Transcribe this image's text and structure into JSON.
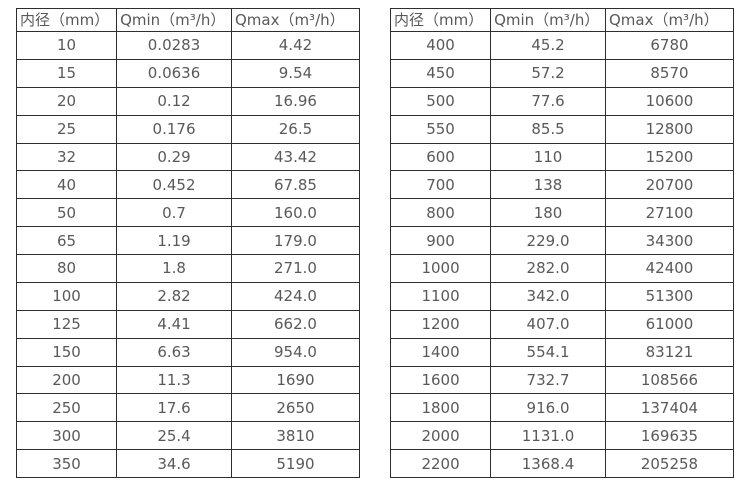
{
  "style": {
    "border_color": "#2e2e2e",
    "text_color": "#595959",
    "background_color": "#ffffff"
  },
  "tables": [
    {
      "name": "flow-rates-small-diameter",
      "columns": [
        "内径（mm）",
        "Qmin（m³/h）",
        "Qmax（m³/h）"
      ],
      "rows": [
        [
          "10",
          "0.0283",
          "4.42"
        ],
        [
          "15",
          "0.0636",
          "9.54"
        ],
        [
          "20",
          "0.12",
          "16.96"
        ],
        [
          "25",
          "0.176",
          "26.5"
        ],
        [
          "32",
          "0.29",
          "43.42"
        ],
        [
          "40",
          "0.452",
          "67.85"
        ],
        [
          "50",
          "0.7",
          "160.0"
        ],
        [
          "65",
          "1.19",
          "179.0"
        ],
        [
          "80",
          "1.8",
          "271.0"
        ],
        [
          "100",
          "2.82",
          "424.0"
        ],
        [
          "125",
          "4.41",
          "662.0"
        ],
        [
          "150",
          "6.63",
          "954.0"
        ],
        [
          "200",
          "11.3",
          "1690"
        ],
        [
          "250",
          "17.6",
          "2650"
        ],
        [
          "300",
          "25.4",
          "3810"
        ],
        [
          "350",
          "34.6",
          "5190"
        ]
      ]
    },
    {
      "name": "flow-rates-large-diameter",
      "columns": [
        "内径（mm）",
        "Qmin（m³/h）",
        "Qmax（m³/h）"
      ],
      "rows": [
        [
          "400",
          "45.2",
          "6780"
        ],
        [
          "450",
          "57.2",
          "8570"
        ],
        [
          "500",
          "77.6",
          "10600"
        ],
        [
          "550",
          "85.5",
          "12800"
        ],
        [
          "600",
          "110",
          "15200"
        ],
        [
          "700",
          "138",
          "20700"
        ],
        [
          "800",
          "180",
          "27100"
        ],
        [
          "900",
          "229.0",
          "34300"
        ],
        [
          "1000",
          "282.0",
          "42400"
        ],
        [
          "1100",
          "342.0",
          "51300"
        ],
        [
          "1200",
          "407.0",
          "61000"
        ],
        [
          "1400",
          "554.1",
          "83121"
        ],
        [
          "1600",
          "732.7",
          "108566"
        ],
        [
          "1800",
          "916.0",
          "137404"
        ],
        [
          "2000",
          "1131.0",
          "169635"
        ],
        [
          "2200",
          "1368.4",
          "205258"
        ]
      ]
    }
  ]
}
